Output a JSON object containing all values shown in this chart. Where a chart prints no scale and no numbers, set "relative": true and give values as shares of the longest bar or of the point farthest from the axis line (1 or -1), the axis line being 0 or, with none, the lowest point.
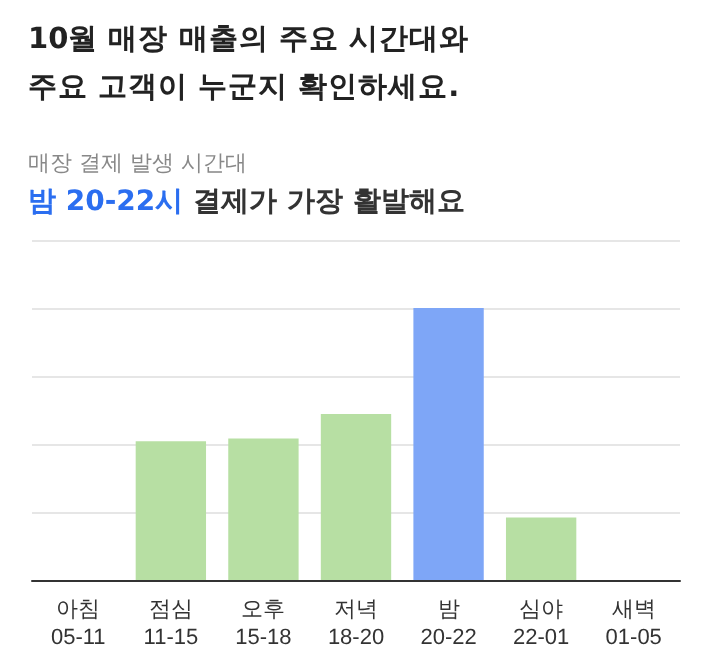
{
  "chart_data": {
    "type": "bar",
    "title": "10월 매장 매출의 주요 시간대와\n주요 고객이 누군지 확인하세요.",
    "subtitle": "매장 결제 발생 시간대",
    "annotations": [
      "밤 20-22시",
      "결제가 가장 활발해요"
    ],
    "categories": [
      "아침\n05-11",
      "점심\n11-15",
      "오후\n15-18",
      "저녁\n18-20",
      "밤\n20-22",
      "심야\n22-01",
      "새벽\n01-05"
    ],
    "values": [
      0,
      0.51,
      0.52,
      0.61,
      1,
      0.23,
      0
    ],
    "colors": [
      "#b7dfa3",
      "#b7dfa3",
      "#b7dfa3",
      "#b7dfa3",
      "#7ea6f7",
      "#b7dfa3",
      "#b7dfa3"
    ],
    "relative": true,
    "grid": "y"
  }
}
